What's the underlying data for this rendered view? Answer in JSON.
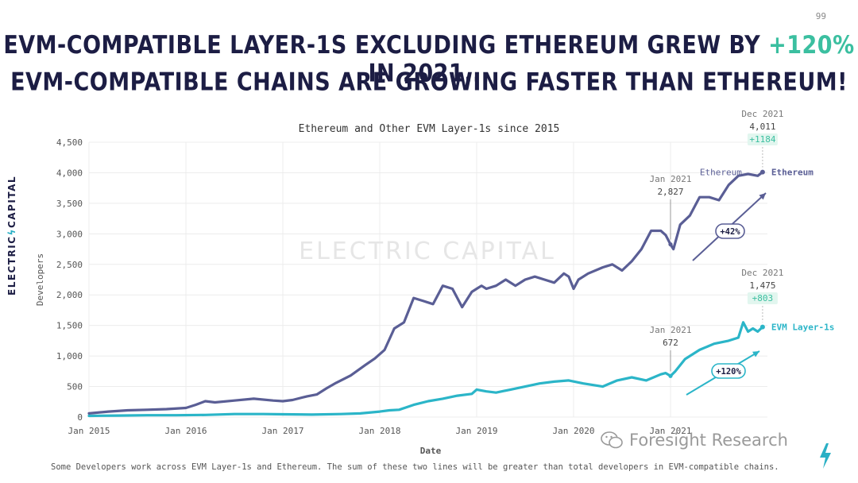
{
  "page_number": "99",
  "headline": {
    "line1_before": "EVM-COMPATIBLE LAYER-1S EXCLUDING ETHEREUM GREW BY ",
    "line1_accent": "+120%",
    "line1_after": " IN 2021...",
    "line2": "EVM-COMPATIBLE CHAINS ARE GROWING FASTER THAN ETHEREUM!"
  },
  "side_logo": {
    "left": "ELECTRIC",
    "right": "CAPITAL"
  },
  "watermark": "ELECTRIC CAPITAL",
  "footnote": "Some Developers work across EVM Layer-1s and Ethereum. The sum of these two lines will be greater than total developers in EVM-compatible chains.",
  "wechat_label": "Foresight Research",
  "colors": {
    "ethereum": "#5a5e95",
    "evm": "#2bb5c8",
    "accent": "#3bbfa0",
    "grid": "#ececec"
  },
  "chart_data": {
    "type": "line",
    "title": "Ethereum and Other EVM Layer-1s since 2015",
    "xlabel": "Date",
    "ylabel": "Developers",
    "xlim": [
      2015.0,
      2022.0
    ],
    "ylim": [
      0,
      4500
    ],
    "yticks": [
      0,
      500,
      1000,
      1500,
      2000,
      2500,
      3000,
      3500,
      4000,
      4500
    ],
    "ytick_labels": [
      "0",
      "500",
      "1,000",
      "1,500",
      "2,000",
      "2,500",
      "3,000",
      "3,500",
      "4,000",
      "4,500"
    ],
    "xticks": [
      2015,
      2016,
      2017,
      2018,
      2019,
      2020,
      2021
    ],
    "xtick_labels": [
      "Jan 2015",
      "Jan 2016",
      "Jan 2017",
      "Jan 2018",
      "Jan 2019",
      "Jan 2020",
      "Jan 2021"
    ],
    "grid": true,
    "series": [
      {
        "name": "Ethereum",
        "end_label": "Ethereum",
        "inline_label": "Ethereum",
        "x": [
          2015.0,
          2015.2,
          2015.4,
          2015.6,
          2015.8,
          2016.0,
          2016.1,
          2016.2,
          2016.3,
          2016.5,
          2016.7,
          2016.9,
          2017.0,
          2017.1,
          2017.25,
          2017.35,
          2017.45,
          2017.55,
          2017.7,
          2017.85,
          2017.95,
          2018.05,
          2018.15,
          2018.25,
          2018.35,
          2018.45,
          2018.55,
          2018.65,
          2018.75,
          2018.85,
          2018.95,
          2019.0,
          2019.05,
          2019.1,
          2019.2,
          2019.3,
          2019.4,
          2019.5,
          2019.6,
          2019.7,
          2019.8,
          2019.9,
          2019.95,
          2020.0,
          2020.05,
          2020.15,
          2020.3,
          2020.4,
          2020.5,
          2020.6,
          2020.7,
          2020.8,
          2020.9,
          2020.95,
          2021.0,
          2021.03,
          2021.1,
          2021.2,
          2021.3,
          2021.4,
          2021.5,
          2021.6,
          2021.7,
          2021.8,
          2021.9,
          2021.95
        ],
        "y": [
          60,
          90,
          110,
          120,
          130,
          150,
          200,
          260,
          240,
          270,
          300,
          270,
          260,
          280,
          340,
          370,
          470,
          560,
          680,
          850,
          960,
          1100,
          1450,
          1550,
          1950,
          1900,
          1850,
          2150,
          2100,
          1800,
          2050,
          2100,
          2150,
          2100,
          2150,
          2250,
          2150,
          2250,
          2300,
          2250,
          2200,
          2350,
          2300,
          2100,
          2250,
          2350,
          2450,
          2500,
          2400,
          2550,
          2750,
          3050,
          3050,
          2980,
          2827,
          2750,
          3150,
          3300,
          3600,
          3600,
          3550,
          3800,
          3950,
          3980,
          3950,
          4011
        ],
        "annotations": [
          {
            "date": "Jan 2021",
            "value": "2,827",
            "x": 2021.0,
            "y": 2827
          },
          {
            "date": "Dec 2021",
            "value": "4,011",
            "change": "+1184",
            "x": 2021.95,
            "y": 4011
          }
        ],
        "growth_label": "+42%"
      },
      {
        "name": "EVM Layer-1s",
        "end_label": "EVM Layer-1s",
        "x": [
          2015.0,
          2015.3,
          2015.6,
          2015.9,
          2016.2,
          2016.5,
          2016.8,
          2017.0,
          2017.3,
          2017.6,
          2017.8,
          2018.0,
          2018.1,
          2018.2,
          2018.35,
          2018.5,
          2018.65,
          2018.8,
          2018.95,
          2019.0,
          2019.1,
          2019.2,
          2019.35,
          2019.5,
          2019.65,
          2019.8,
          2019.95,
          2020.1,
          2020.3,
          2020.45,
          2020.6,
          2020.75,
          2020.9,
          2020.95,
          2021.0,
          2021.05,
          2021.15,
          2021.3,
          2021.45,
          2021.6,
          2021.7,
          2021.75,
          2021.8,
          2021.85,
          2021.9,
          2021.95
        ],
        "y": [
          20,
          25,
          30,
          30,
          35,
          50,
          50,
          45,
          40,
          50,
          60,
          90,
          110,
          120,
          200,
          260,
          300,
          350,
          380,
          450,
          420,
          400,
          450,
          500,
          550,
          580,
          600,
          550,
          500,
          600,
          650,
          600,
          700,
          720,
          672,
          750,
          950,
          1100,
          1200,
          1250,
          1300,
          1550,
          1400,
          1450,
          1400,
          1475
        ],
        "annotations": [
          {
            "date": "Jan 2021",
            "value": "672",
            "x": 2021.0,
            "y": 672
          },
          {
            "date": "Dec 2021",
            "value": "1,475",
            "change": "+803",
            "x": 2021.95,
            "y": 1475
          }
        ],
        "growth_label": "+120%"
      }
    ]
  }
}
